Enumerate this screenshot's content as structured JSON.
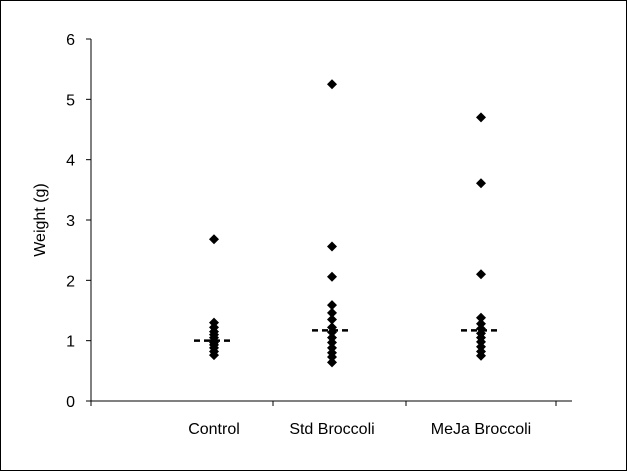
{
  "chart_data": {
    "type": "scatter",
    "title": "",
    "xlabel": "",
    "ylabel": "Weight (g)",
    "ylim": [
      0,
      6
    ],
    "yticks": [
      0,
      1,
      2,
      3,
      4,
      5,
      6
    ],
    "grid": false,
    "legend": "none",
    "marker": "diamond",
    "marker_color": "#000000",
    "categories": [
      "Control",
      "Std Broccoli",
      "MeJa Broccoli"
    ],
    "series": [
      {
        "category": "Control",
        "values": [
          2.68,
          1.3,
          1.22,
          1.15,
          1.1,
          1.05,
          1.0,
          0.97,
          0.93,
          0.88,
          0.82,
          0.76
        ],
        "mean": 1.0
      },
      {
        "category": "Std Broccoli",
        "values": [
          5.25,
          2.56,
          2.06,
          1.59,
          1.46,
          1.35,
          1.22,
          1.14,
          1.05,
          0.97,
          0.88,
          0.8,
          0.73,
          0.64
        ],
        "mean": 1.17
      },
      {
        "category": "MeJa Broccoli",
        "values": [
          4.7,
          3.61,
          2.1,
          1.38,
          1.28,
          1.2,
          1.12,
          1.05,
          0.98,
          0.9,
          0.82,
          0.75
        ],
        "mean": 1.17
      }
    ]
  }
}
